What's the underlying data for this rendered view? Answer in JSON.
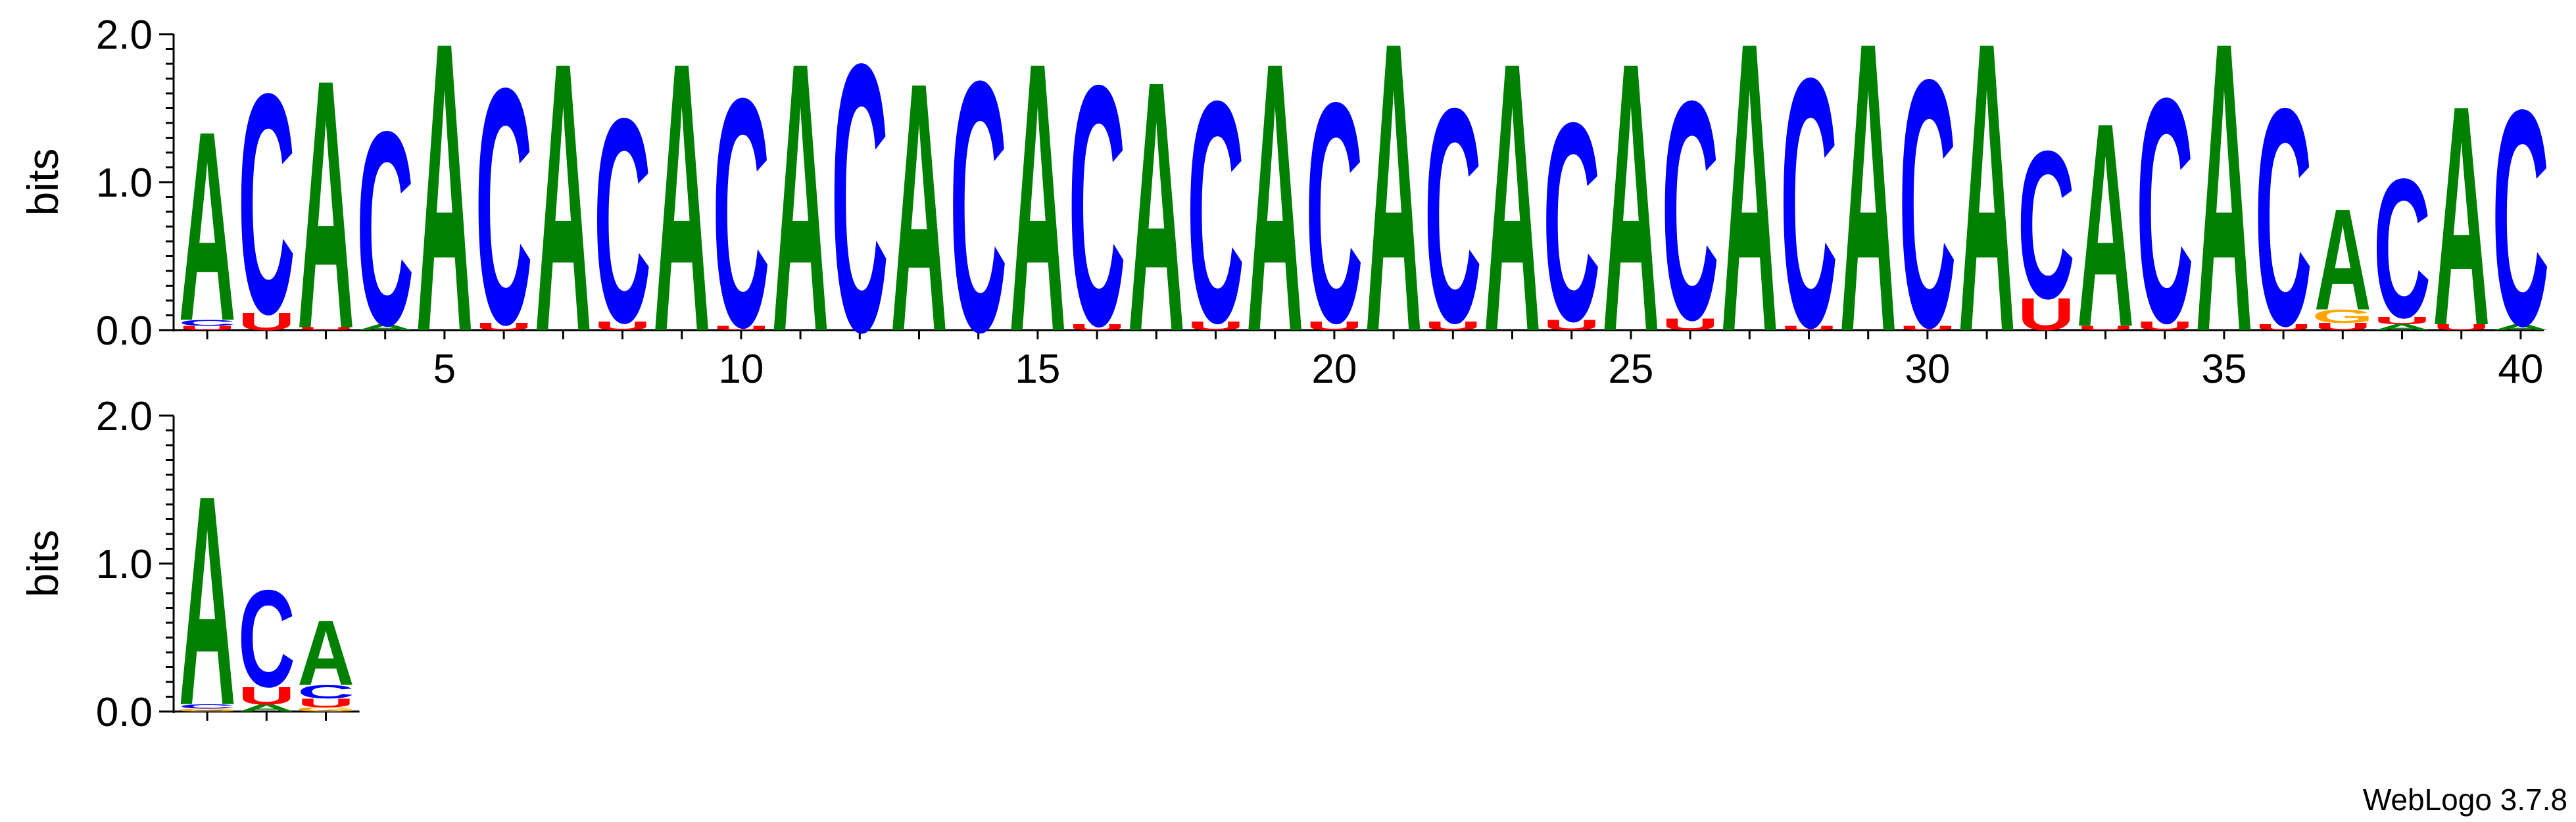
{
  "chart_data": {
    "type": "sequence-logo",
    "ylabel": "bits",
    "ylim": [
      0,
      2.0
    ],
    "y_ticks": [
      "0.0",
      "1.0",
      "2.0"
    ],
    "x_ticks": [
      "5",
      "10",
      "15",
      "20",
      "25",
      "30",
      "35",
      "40"
    ],
    "colors": {
      "A": "#008000",
      "C": "#0000ff",
      "G": "#ffa500",
      "U": "#ff0000"
    },
    "rows": [
      {
        "start_position": 1,
        "columns": [
          [
            [
              "U",
              0.03
            ],
            [
              "C",
              0.04
            ],
            [
              "A",
              1.31
            ]
          ],
          [
            [
              "U",
              0.12
            ],
            [
              "C",
              1.52
            ]
          ],
          [
            [
              "U",
              0.02
            ],
            [
              "A",
              1.72
            ]
          ],
          [
            [
              "A",
              0.04
            ],
            [
              "C",
              1.34
            ]
          ],
          [
            [
              "A",
              2.0
            ]
          ],
          [
            [
              "U",
              0.05
            ],
            [
              "C",
              1.63
            ]
          ],
          [
            [
              "A",
              1.86
            ]
          ],
          [
            [
              "U",
              0.06
            ],
            [
              "C",
              1.41
            ]
          ],
          [
            [
              "A",
              1.86
            ]
          ],
          [
            [
              "U",
              0.03
            ],
            [
              "C",
              1.58
            ]
          ],
          [
            [
              "A",
              1.86
            ]
          ],
          [
            [
              "C",
              1.85
            ]
          ],
          [
            [
              "A",
              1.72
            ]
          ],
          [
            [
              "C",
              1.73
            ]
          ],
          [
            [
              "A",
              1.86
            ]
          ],
          [
            [
              "U",
              0.04
            ],
            [
              "C",
              1.66
            ]
          ],
          [
            [
              "A",
              1.73
            ]
          ],
          [
            [
              "U",
              0.06
            ],
            [
              "C",
              1.53
            ]
          ],
          [
            [
              "A",
              1.86
            ]
          ],
          [
            [
              "U",
              0.06
            ],
            [
              "C",
              1.52
            ]
          ],
          [
            [
              "A",
              2.0
            ]
          ],
          [
            [
              "U",
              0.06
            ],
            [
              "C",
              1.48
            ]
          ],
          [
            [
              "A",
              1.86
            ]
          ],
          [
            [
              "U",
              0.07
            ],
            [
              "C",
              1.37
            ]
          ],
          [
            [
              "A",
              1.86
            ]
          ],
          [
            [
              "U",
              0.08
            ],
            [
              "C",
              1.51
            ]
          ],
          [
            [
              "A",
              2.0
            ]
          ],
          [
            [
              "U",
              0.03
            ],
            [
              "C",
              1.72
            ]
          ],
          [
            [
              "A",
              2.0
            ]
          ],
          [
            [
              "U",
              0.03
            ],
            [
              "C",
              1.71
            ]
          ],
          [
            [
              "A",
              2.0
            ]
          ],
          [
            [
              "U",
              0.22
            ],
            [
              "C",
              1.02
            ]
          ],
          [
            [
              "U",
              0.03
            ],
            [
              "A",
              1.41
            ]
          ],
          [
            [
              "U",
              0.06
            ],
            [
              "C",
              1.55
            ]
          ],
          [
            [
              "A",
              2.0
            ]
          ],
          [
            [
              "U",
              0.04
            ],
            [
              "C",
              1.5
            ]
          ],
          [
            [
              "U",
              0.05
            ],
            [
              "G",
              0.09
            ],
            [
              "A",
              0.7
            ]
          ],
          [
            [
              "A",
              0.04
            ],
            [
              "U",
              0.05
            ],
            [
              "C",
              0.96
            ]
          ],
          [
            [
              "U",
              0.04
            ],
            [
              "A",
              1.52
            ]
          ],
          [
            [
              "A",
              0.04
            ],
            [
              "C",
              1.49
            ]
          ]
        ]
      },
      {
        "start_position": 1,
        "columns": [
          [
            [
              "G",
              0.02
            ],
            [
              "C",
              0.03
            ],
            [
              "A",
              1.45
            ]
          ],
          [
            [
              "A",
              0.05
            ],
            [
              "U",
              0.12
            ],
            [
              "C",
              0.67
            ]
          ],
          [
            [
              "G",
              0.03
            ],
            [
              "U",
              0.06
            ],
            [
              "C",
              0.09
            ],
            [
              "A",
              0.45
            ]
          ]
        ]
      }
    ],
    "footer": "WebLogo 3.7.8"
  }
}
